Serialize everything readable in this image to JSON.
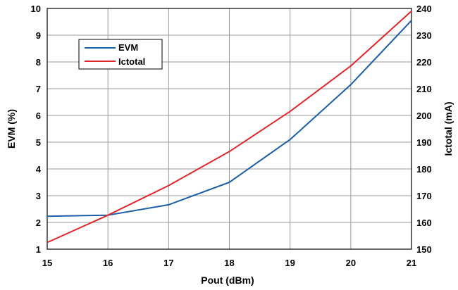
{
  "chart_data": {
    "type": "line",
    "title": "",
    "xlabel": "Pout (dBm)",
    "ylabel": "EVM (%)",
    "y2label": "Ictotal (mA)",
    "xlim": [
      15,
      21
    ],
    "ylim": [
      1,
      10
    ],
    "y2lim": [
      150,
      240
    ],
    "xticks": [
      "15",
      "16",
      "17",
      "18",
      "19",
      "20",
      "21"
    ],
    "yticks": [
      "1",
      "2",
      "3",
      "4",
      "5",
      "6",
      "7",
      "8",
      "9",
      "10"
    ],
    "y2ticks": [
      "150",
      "160",
      "170",
      "180",
      "190",
      "200",
      "210",
      "220",
      "230",
      "240"
    ],
    "grid": true,
    "legend_position": "top-left",
    "x": [
      15,
      16,
      17,
      18,
      19,
      20,
      21
    ],
    "series": [
      {
        "name": "EVM",
        "axis": "left",
        "color": "#1a5fa8",
        "values": [
          2.23,
          2.27,
          2.66,
          3.5,
          5.1,
          7.15,
          9.55
        ]
      },
      {
        "name": "Ictotal",
        "axis": "right",
        "color": "#e0262a",
        "values": [
          152.5,
          162.7,
          173.8,
          186.5,
          201.5,
          218.5,
          239.0
        ]
      }
    ]
  }
}
